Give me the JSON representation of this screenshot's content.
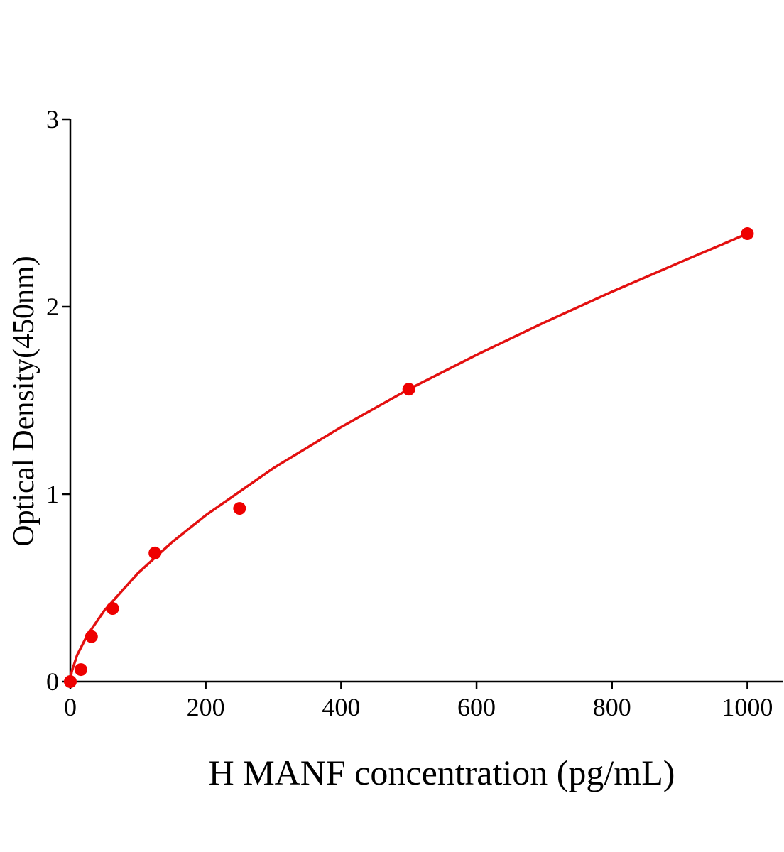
{
  "chart_data": {
    "type": "scatter",
    "x_label": "H MANF concentration (pg/mL)",
    "y_label": "Optical Density(450nm)",
    "series": [
      {
        "mode": "markers",
        "color": "#ee0000",
        "x": [
          0,
          15.6,
          31.25,
          62.5,
          125,
          250,
          500,
          1000
        ],
        "values": [
          0,
          0.064,
          0.24,
          0.39,
          0.686,
          0.924,
          1.56,
          2.39
        ]
      },
      {
        "mode": "line",
        "color": "#e31010",
        "x": [
          0,
          2,
          10,
          25,
          50,
          100,
          150,
          200,
          300,
          400,
          500,
          600,
          700,
          800,
          900,
          1000
        ],
        "values": [
          0,
          0.052,
          0.141,
          0.247,
          0.378,
          0.579,
          0.743,
          0.887,
          1.139,
          1.358,
          1.56,
          1.743,
          1.916,
          2.08,
          2.236,
          2.39
        ]
      }
    ],
    "xlim": [
      0,
      1052
    ],
    "xticks": [
      0,
      200,
      400,
      600,
      800,
      1000
    ],
    "ylim": [
      0,
      3
    ],
    "yticks": [
      0,
      1,
      2,
      3
    ],
    "grid": false
  }
}
